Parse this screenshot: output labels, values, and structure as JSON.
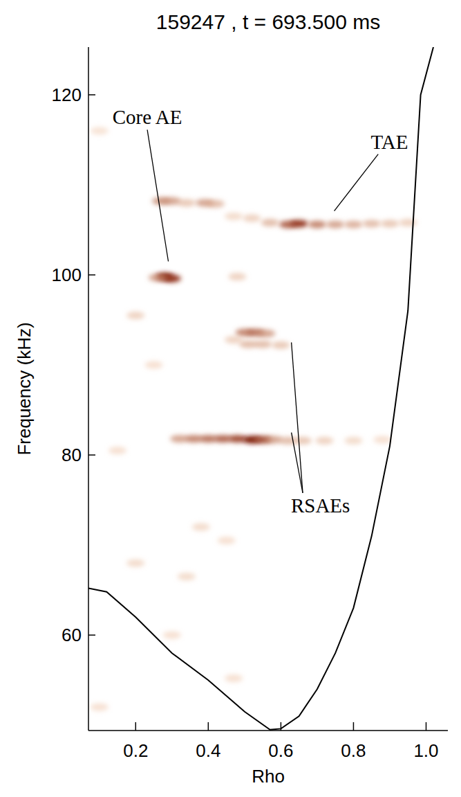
{
  "chart_data": {
    "type": "scatter",
    "title": "159247 , t = 693.500 ms",
    "x_label": "Rho",
    "y_label": "Frequency (kHz)",
    "xlim": [
      0.07,
      1.06
    ],
    "ylim": [
      49.4,
      125.3
    ],
    "xticks": [
      0.2,
      0.4,
      0.6,
      0.8,
      {
        "value": 1,
        "label": "1.0"
      }
    ],
    "yticks": [
      60,
      80,
      100,
      120
    ],
    "grid": false,
    "color": "#7a1200",
    "series": [
      {
        "type": "scatter",
        "marker": "blob",
        "x": [
          0.28,
          0.3,
          0.26,
          0.27,
          0.3,
          0.34,
          0.39,
          0.42,
          0.62,
          0.65,
          0.7,
          0.75,
          0.8,
          0.85,
          0.9,
          0.95,
          0.57,
          0.52,
          0.47,
          0.5,
          0.53,
          0.56,
          0.51,
          0.55,
          0.6,
          0.47,
          0.32,
          0.36,
          0.4,
          0.44,
          0.48,
          0.52,
          0.55,
          0.58,
          0.62,
          0.66,
          0.72,
          0.8,
          0.88,
          0.1,
          0.2,
          0.48,
          0.38,
          0.2,
          0.34,
          0.45,
          0.15,
          0.25,
          0.47,
          0.1,
          0.3
        ],
        "values": [
          99.8,
          99.6,
          99.7,
          108.2,
          108.2,
          108.0,
          108.0,
          107.9,
          105.6,
          105.7,
          105.6,
          105.6,
          105.6,
          105.7,
          105.7,
          105.8,
          105.8,
          106.3,
          106.5,
          93.6,
          93.6,
          93.5,
          92.3,
          92.3,
          92.2,
          92.8,
          81.8,
          81.8,
          81.8,
          81.8,
          81.8,
          81.7,
          81.7,
          81.7,
          81.6,
          81.6,
          81.6,
          81.6,
          81.7,
          116,
          95.5,
          99.8,
          72,
          68,
          66.5,
          70.5,
          80.5,
          90,
          55.2,
          52,
          60
        ],
        "intensity": [
          1.0,
          0.8,
          0.4,
          0.45,
          0.4,
          0.25,
          0.4,
          0.3,
          0.6,
          0.8,
          0.5,
          0.4,
          0.35,
          0.3,
          0.25,
          0.2,
          0.3,
          0.2,
          0.15,
          0.5,
          0.55,
          0.4,
          0.3,
          0.3,
          0.25,
          0.2,
          0.4,
          0.5,
          0.55,
          0.6,
          0.7,
          1.0,
          0.7,
          0.4,
          0.3,
          0.25,
          0.2,
          0.15,
          0.12,
          0.1,
          0.2,
          0.2,
          0.15,
          0.15,
          0.15,
          0.12,
          0.12,
          0.12,
          0.12,
          0.12,
          0.12
        ]
      },
      {
        "type": "line",
        "color": "#000000",
        "line_style": "solid",
        "x": [
          0.07,
          0.12,
          0.2,
          0.3,
          0.4,
          0.5,
          0.57,
          0.6,
          0.65,
          0.7,
          0.75,
          0.8,
          0.85,
          0.9,
          0.95,
          0.985,
          1.02
        ],
        "values": [
          65.2,
          64.8,
          62,
          58,
          55,
          51.5,
          49.5,
          49.6,
          51,
          54,
          58,
          63,
          71,
          81,
          96,
          120,
          125.3
        ]
      }
    ],
    "annotations": [
      {
        "text": "Core AE",
        "text_x": 0.232,
        "text_y": 117.5,
        "x": [
          0.29
        ],
        "y": [
          101.5
        ]
      },
      {
        "text": "TAE",
        "text_x": 0.899,
        "text_y": 114.8,
        "x": [
          0.747
        ],
        "y": [
          107.1
        ]
      },
      {
        "text": "RSAEs",
        "text_x": 0.709,
        "text_y": 74.4,
        "x": [
          0.629,
          0.629
        ],
        "y": [
          92.5,
          82.5
        ]
      }
    ]
  }
}
